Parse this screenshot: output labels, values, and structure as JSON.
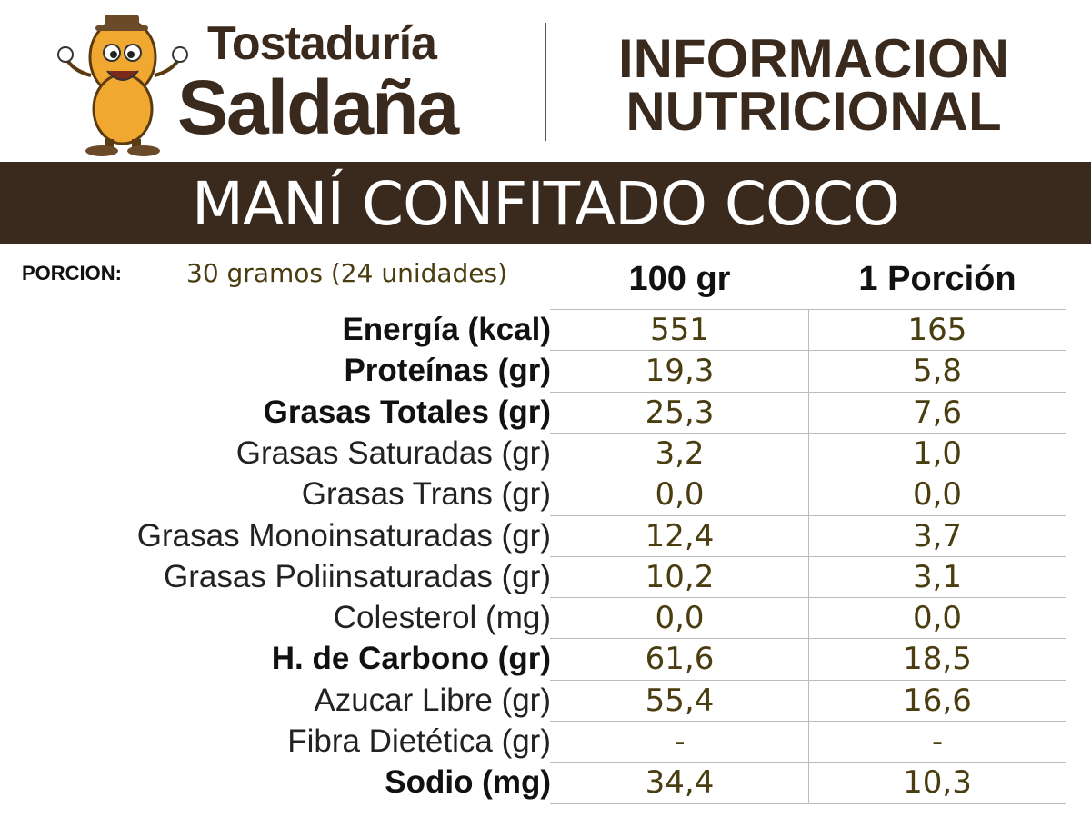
{
  "header": {
    "brand_line1": "Tostaduría",
    "brand_line2": "Saldaña",
    "title_line1": "INFORMACION",
    "title_line2": "NUTRICIONAL"
  },
  "product": "MANÍ CONFITADO COCO",
  "portion": {
    "label": "PORCION:",
    "value": "30 gramos (24 unidades)"
  },
  "table": {
    "columns": [
      "100 gr",
      "1 Porción"
    ],
    "rows": [
      {
        "label": "Energía (kcal)",
        "bold": true,
        "values": [
          "551",
          "165"
        ]
      },
      {
        "label": "Proteínas (gr)",
        "bold": true,
        "values": [
          "19,3",
          "5,8"
        ]
      },
      {
        "label": "Grasas Totales (gr)",
        "bold": true,
        "values": [
          "25,3",
          "7,6"
        ]
      },
      {
        "label": "Grasas Saturadas (gr)",
        "bold": false,
        "values": [
          "3,2",
          "1,0"
        ]
      },
      {
        "label": "Grasas Trans (gr)",
        "bold": false,
        "values": [
          "0,0",
          "0,0"
        ]
      },
      {
        "label": "Grasas Monoinsaturadas (gr)",
        "bold": false,
        "values": [
          "12,4",
          "3,7"
        ]
      },
      {
        "label": "Grasas Poliinsaturadas (gr)",
        "bold": false,
        "values": [
          "10,2",
          "3,1"
        ]
      },
      {
        "label": "Colesterol (mg)",
        "bold": false,
        "values": [
          "0,0",
          "0,0"
        ]
      },
      {
        "label": "H. de Carbono (gr)",
        "bold": true,
        "values": [
          "61,6",
          "18,5"
        ]
      },
      {
        "label": "Azucar Libre (gr)",
        "bold": false,
        "values": [
          "55,4",
          "16,6"
        ]
      },
      {
        "label": "Fibra Dietética (gr)",
        "bold": false,
        "values": [
          "-",
          "-"
        ]
      },
      {
        "label": "Sodio (mg)",
        "bold": true,
        "values": [
          "34,4",
          "10,3"
        ]
      }
    ]
  }
}
